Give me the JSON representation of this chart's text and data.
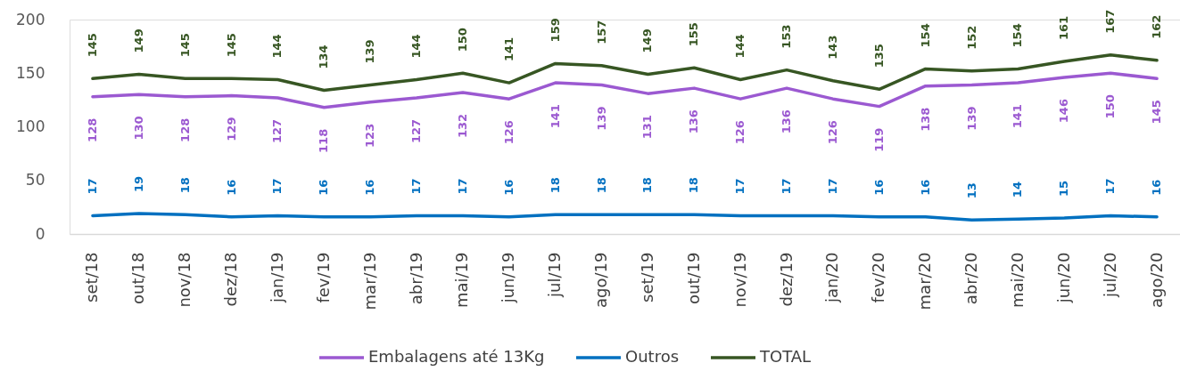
{
  "chart_data": {
    "type": "line",
    "categories": [
      "set/18",
      "out/18",
      "nov/18",
      "dez/18",
      "jan/19",
      "fev/19",
      "mar/19",
      "abr/19",
      "mai/19",
      "jun/19",
      "jul/19",
      "ago/19",
      "set/19",
      "out/19",
      "nov/19",
      "dez/19",
      "jan/20",
      "fev/20",
      "mar/20",
      "abr/20",
      "mai/20",
      "jun/20",
      "jul/20",
      "ago/20"
    ],
    "series": [
      {
        "name": "Embalagens até 13Kg",
        "color": "#9b59d1",
        "values": [
          128,
          130,
          128,
          129,
          127,
          118,
          123,
          127,
          132,
          126,
          141,
          139,
          131,
          136,
          126,
          136,
          126,
          119,
          138,
          139,
          141,
          146,
          150,
          145
        ]
      },
      {
        "name": "Outros",
        "color": "#0070c0",
        "values": [
          17,
          19,
          18,
          16,
          17,
          16,
          16,
          17,
          17,
          16,
          18,
          18,
          18,
          18,
          17,
          17,
          17,
          16,
          16,
          13,
          14,
          15,
          17,
          16
        ]
      },
      {
        "name": "TOTAL",
        "color": "#375623",
        "values": [
          145,
          149,
          145,
          145,
          144,
          134,
          139,
          144,
          150,
          141,
          159,
          157,
          149,
          155,
          144,
          153,
          143,
          135,
          154,
          152,
          154,
          161,
          167,
          162
        ]
      }
    ],
    "ylim": [
      0,
      200
    ],
    "yticks": [
      0,
      50,
      100,
      150,
      200
    ],
    "grid": false,
    "legend": "bottom",
    "data_labels": true,
    "line_style": "solid"
  }
}
